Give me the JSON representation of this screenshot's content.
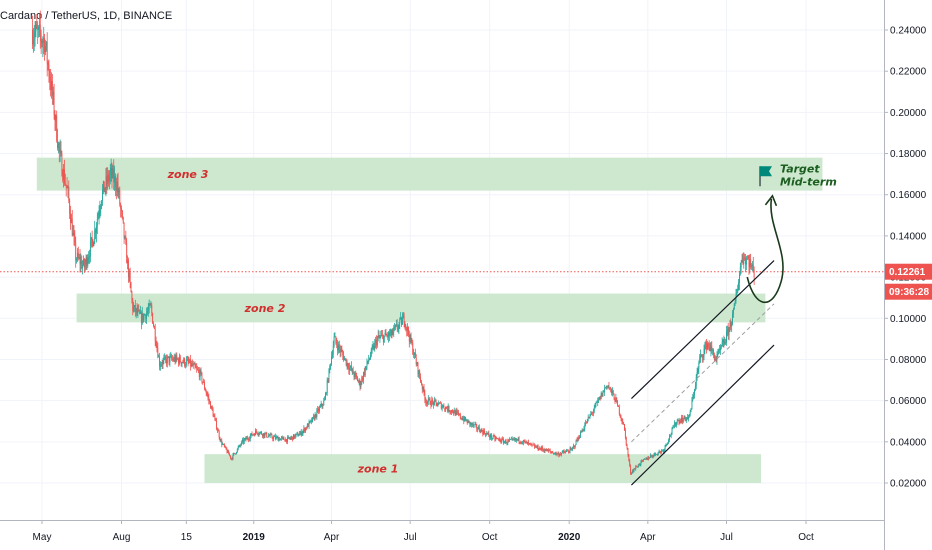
{
  "header": {
    "symbol_title": "Cardano / TetherUS, 1D, BINANCE"
  },
  "colors": {
    "up": "#26a69a",
    "down": "#ef5350",
    "zone_fill": "#c8e6c9",
    "zone_text": "#d32f2f",
    "price_line": "#ef5350",
    "arrow": "#1b3a1b",
    "flag": "#00897b"
  },
  "chart_data": {
    "type": "candlestick",
    "symbol": "Cardano / TetherUS",
    "interval": "1D",
    "exchange": "BINANCE",
    "ylim": [
      0.005,
      0.255
    ],
    "y_ticks": [
      "0.24000",
      "0.22000",
      "0.20000",
      "0.18000",
      "0.16000",
      "0.14000",
      "0.12000",
      "0.10000",
      "0.08000",
      "0.06000",
      "0.04000",
      "0.02000"
    ],
    "x_ticks": [
      "May",
      "Aug",
      "15",
      "2019",
      "Apr",
      "Jul",
      "Oct",
      "2020",
      "Apr",
      "Jul",
      "Oct"
    ],
    "current_price": "0.12261",
    "countdown": "09:36:28",
    "price_path": [
      [
        "2018-04-20",
        0.24
      ],
      [
        "2018-05-05",
        0.235
      ],
      [
        "2018-05-15",
        0.205
      ],
      [
        "2018-05-22",
        0.18
      ],
      [
        "2018-06-01",
        0.16
      ],
      [
        "2018-06-10",
        0.13
      ],
      [
        "2018-06-20",
        0.125
      ],
      [
        "2018-07-01",
        0.14
      ],
      [
        "2018-07-10",
        0.16
      ],
      [
        "2018-07-20",
        0.17
      ],
      [
        "2018-07-28",
        0.165
      ],
      [
        "2018-08-05",
        0.14
      ],
      [
        "2018-08-15",
        0.105
      ],
      [
        "2018-08-25",
        0.1
      ],
      [
        "2018-09-05",
        0.105
      ],
      [
        "2018-09-15",
        0.078
      ],
      [
        "2018-09-25",
        0.08
      ],
      [
        "2018-10-05",
        0.08
      ],
      [
        "2018-10-20",
        0.078
      ],
      [
        "2018-11-01",
        0.073
      ],
      [
        "2018-11-15",
        0.055
      ],
      [
        "2018-11-25",
        0.04
      ],
      [
        "2018-12-07",
        0.032
      ],
      [
        "2018-12-20",
        0.04
      ],
      [
        "2019-01-05",
        0.045
      ],
      [
        "2019-01-25",
        0.042
      ],
      [
        "2019-02-10",
        0.041
      ],
      [
        "2019-02-25",
        0.044
      ],
      [
        "2019-03-10",
        0.05
      ],
      [
        "2019-03-25",
        0.06
      ],
      [
        "2019-04-05",
        0.09
      ],
      [
        "2019-04-20",
        0.078
      ],
      [
        "2019-05-05",
        0.068
      ],
      [
        "2019-05-15",
        0.08
      ],
      [
        "2019-05-25",
        0.09
      ],
      [
        "2019-06-10",
        0.092
      ],
      [
        "2019-06-25",
        0.1
      ],
      [
        "2019-07-05",
        0.085
      ],
      [
        "2019-07-20",
        0.06
      ],
      [
        "2019-08-05",
        0.058
      ],
      [
        "2019-08-20",
        0.055
      ],
      [
        "2019-09-05",
        0.05
      ],
      [
        "2019-09-20",
        0.046
      ],
      [
        "2019-10-05",
        0.042
      ],
      [
        "2019-10-20",
        0.04
      ],
      [
        "2019-11-05",
        0.041
      ],
      [
        "2019-11-20",
        0.038
      ],
      [
        "2019-12-05",
        0.036
      ],
      [
        "2019-12-20",
        0.034
      ],
      [
        "2020-01-05",
        0.036
      ],
      [
        "2020-01-20",
        0.048
      ],
      [
        "2020-02-05",
        0.06
      ],
      [
        "2020-02-15",
        0.068
      ],
      [
        "2020-02-25",
        0.06
      ],
      [
        "2020-03-05",
        0.048
      ],
      [
        "2020-03-13",
        0.025
      ],
      [
        "2020-03-25",
        0.03
      ],
      [
        "2020-04-05",
        0.033
      ],
      [
        "2020-04-20",
        0.036
      ],
      [
        "2020-05-05",
        0.05
      ],
      [
        "2020-05-20",
        0.052
      ],
      [
        "2020-06-01",
        0.08
      ],
      [
        "2020-06-10",
        0.088
      ],
      [
        "2020-06-20",
        0.08
      ],
      [
        "2020-07-01",
        0.09
      ],
      [
        "2020-07-10",
        0.102
      ],
      [
        "2020-07-20",
        0.13
      ],
      [
        "2020-07-28",
        0.128
      ],
      [
        "2020-08-02",
        0.12261
      ]
    ],
    "zones": [
      {
        "label": "zone 3",
        "range": [
          0.162,
          0.178
        ],
        "start": "2018-04-25",
        "end": "2020-10-20"
      },
      {
        "label": "zone 2",
        "range": [
          0.098,
          0.112
        ],
        "start": "2018-06-10",
        "end": "2020-08-15"
      },
      {
        "label": "zone 1",
        "range": [
          0.02,
          0.034
        ],
        "start": "2018-11-05",
        "end": "2020-08-10"
      }
    ],
    "channel_lines": [
      {
        "style": "solid",
        "from": [
          "2020-03-13",
          0.061
        ],
        "to": [
          "2020-08-25",
          0.128
        ]
      },
      {
        "style": "dashed",
        "from": [
          "2020-03-13",
          0.04
        ],
        "to": [
          "2020-08-25",
          0.107
        ]
      },
      {
        "style": "solid",
        "from": [
          "2020-03-13",
          0.019
        ],
        "to": [
          "2020-08-25",
          0.087
        ]
      }
    ],
    "annotations": [
      {
        "text_line1": "Target",
        "text_line2": "Mid-term",
        "icon": "flag-icon",
        "at": [
          "2020-08-25",
          0.168
        ]
      }
    ]
  }
}
